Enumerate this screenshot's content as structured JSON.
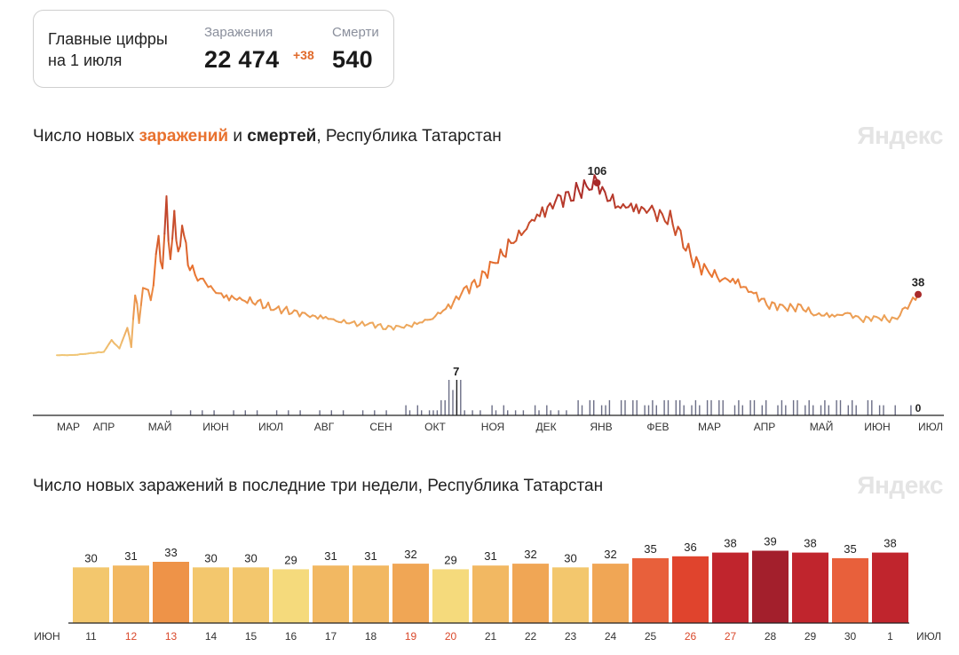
{
  "summary": {
    "caption_line1": "Главные цифры",
    "caption_line2": "на 1 июля",
    "infections_label": "Заражения",
    "infections_value": "22 474",
    "infections_delta": "+38",
    "deaths_label": "Смерти",
    "deaths_value": "540"
  },
  "chart1": {
    "title_prefix": "Число новых ",
    "title_infections": "заражений",
    "title_middle": " и ",
    "title_deaths": "смертей",
    "title_suffix": ", Республика Татарстан",
    "brand": "Яндекс",
    "peak_label": "106",
    "last_label": "38",
    "deaths_peak_label": "7",
    "deaths_last_label": "0"
  },
  "chart2": {
    "title": "Число новых заражений в последние три недели, Республика Татарстан",
    "brand": "Яндекс"
  },
  "chart_data": [
    {
      "type": "line",
      "title": "Число новых заражений и смертей, Республика Татарстан",
      "x_month_labels": [
        "МАР",
        "АПР",
        "МАЙ",
        "ИЮН",
        "ИЮЛ",
        "АВГ",
        "СЕН",
        "ОКТ",
        "НОЯ",
        "ДЕК",
        "ЯНВ",
        "ФЕВ",
        "МАР",
        "АПР",
        "МАЙ",
        "ИЮН",
        "ИЮЛ"
      ],
      "grid": false,
      "series": [
        {
          "name": "заражения",
          "kind": "line",
          "color_scale": [
            "#f0c878",
            "#e8712e",
            "#a92a2a"
          ],
          "keypoints": [
            [
              0,
              1
            ],
            [
              2,
              1
            ],
            [
              4,
              2
            ],
            [
              6,
              3
            ],
            [
              7,
              10
            ],
            [
              8,
              5
            ],
            [
              9,
              18
            ],
            [
              9.5,
              6
            ],
            [
              10,
              40
            ],
            [
              10.5,
              20
            ],
            [
              11,
              45
            ],
            [
              12,
              35
            ],
            [
              13,
              70
            ],
            [
              13.5,
              55
            ],
            [
              14,
              92
            ],
            [
              14.5,
              60
            ],
            [
              15,
              85
            ],
            [
              15.5,
              62
            ],
            [
              16,
              80
            ],
            [
              16.5,
              65
            ],
            [
              17,
              55
            ],
            [
              18,
              48
            ],
            [
              19,
              45
            ],
            [
              20,
              40
            ],
            [
              22,
              36
            ],
            [
              24,
              35
            ],
            [
              26,
              32
            ],
            [
              28,
              29
            ],
            [
              30,
              28
            ],
            [
              32,
              25
            ],
            [
              34,
              24
            ],
            [
              36,
              22
            ],
            [
              38,
              20
            ],
            [
              40,
              20
            ],
            [
              42,
              18
            ],
            [
              44,
              18
            ],
            [
              46,
              20
            ],
            [
              48,
              24
            ],
            [
              50,
              30
            ],
            [
              52,
              40
            ],
            [
              54,
              47
            ],
            [
              56,
              58
            ],
            [
              58,
              68
            ],
            [
              60,
              80
            ],
            [
              62,
              88
            ],
            [
              64,
              95
            ],
            [
              66,
              100
            ],
            [
              68,
              104
            ],
            [
              69,
              106
            ],
            [
              70,
              98
            ],
            [
              72,
              92
            ],
            [
              74,
              91
            ],
            [
              76,
              88
            ],
            [
              78,
              85
            ],
            [
              79,
              80
            ],
            [
              80,
              70
            ],
            [
              81,
              60
            ],
            [
              83,
              52
            ],
            [
              85,
              48
            ],
            [
              87,
              45
            ],
            [
              89,
              38
            ],
            [
              91,
              32
            ],
            [
              93,
              30
            ],
            [
              95,
              30
            ],
            [
              97,
              26
            ],
            [
              99,
              25
            ],
            [
              101,
              26
            ],
            [
              103,
              23
            ],
            [
              105,
              24
            ],
            [
              107,
              22
            ],
            [
              108,
              28
            ],
            [
              109,
              33
            ],
            [
              110,
              38
            ]
          ],
          "peak": 106,
          "last": 38
        },
        {
          "name": "смерти",
          "kind": "bars",
          "color": "#6b6e86",
          "peak": 7,
          "last": 0
        }
      ]
    },
    {
      "type": "bar",
      "title": "Число новых заражений в последние три недели, Республика Татарстан",
      "x_start_label": "ИЮН",
      "x_end_label": "ИЮЛ",
      "categories": [
        "11",
        "12",
        "13",
        "14",
        "15",
        "16",
        "17",
        "18",
        "19",
        "20",
        "21",
        "22",
        "23",
        "24",
        "25",
        "26",
        "27",
        "28",
        "29",
        "30",
        "1"
      ],
      "values": [
        30,
        31,
        33,
        30,
        30,
        29,
        31,
        31,
        32,
        29,
        31,
        32,
        30,
        32,
        35,
        36,
        38,
        39,
        38,
        35,
        38
      ],
      "weekend_categories": [
        "12",
        "13",
        "19",
        "20",
        "26",
        "27"
      ],
      "weekend_color": "#d9482b",
      "colors": [
        "#f3c76d",
        "#f2b862",
        "#ee9348",
        "#f3c76d",
        "#f3c76d",
        "#f5da7c",
        "#f2b862",
        "#f2b862",
        "#f0a655",
        "#f5da7c",
        "#f2b862",
        "#f0a655",
        "#f3c76d",
        "#f0a655",
        "#e8603b",
        "#e0442d",
        "#c0252d",
        "#a31f2c",
        "#c0252d",
        "#e8603b",
        "#c0252d"
      ],
      "ylim": [
        0,
        40
      ],
      "grid": false
    }
  ]
}
